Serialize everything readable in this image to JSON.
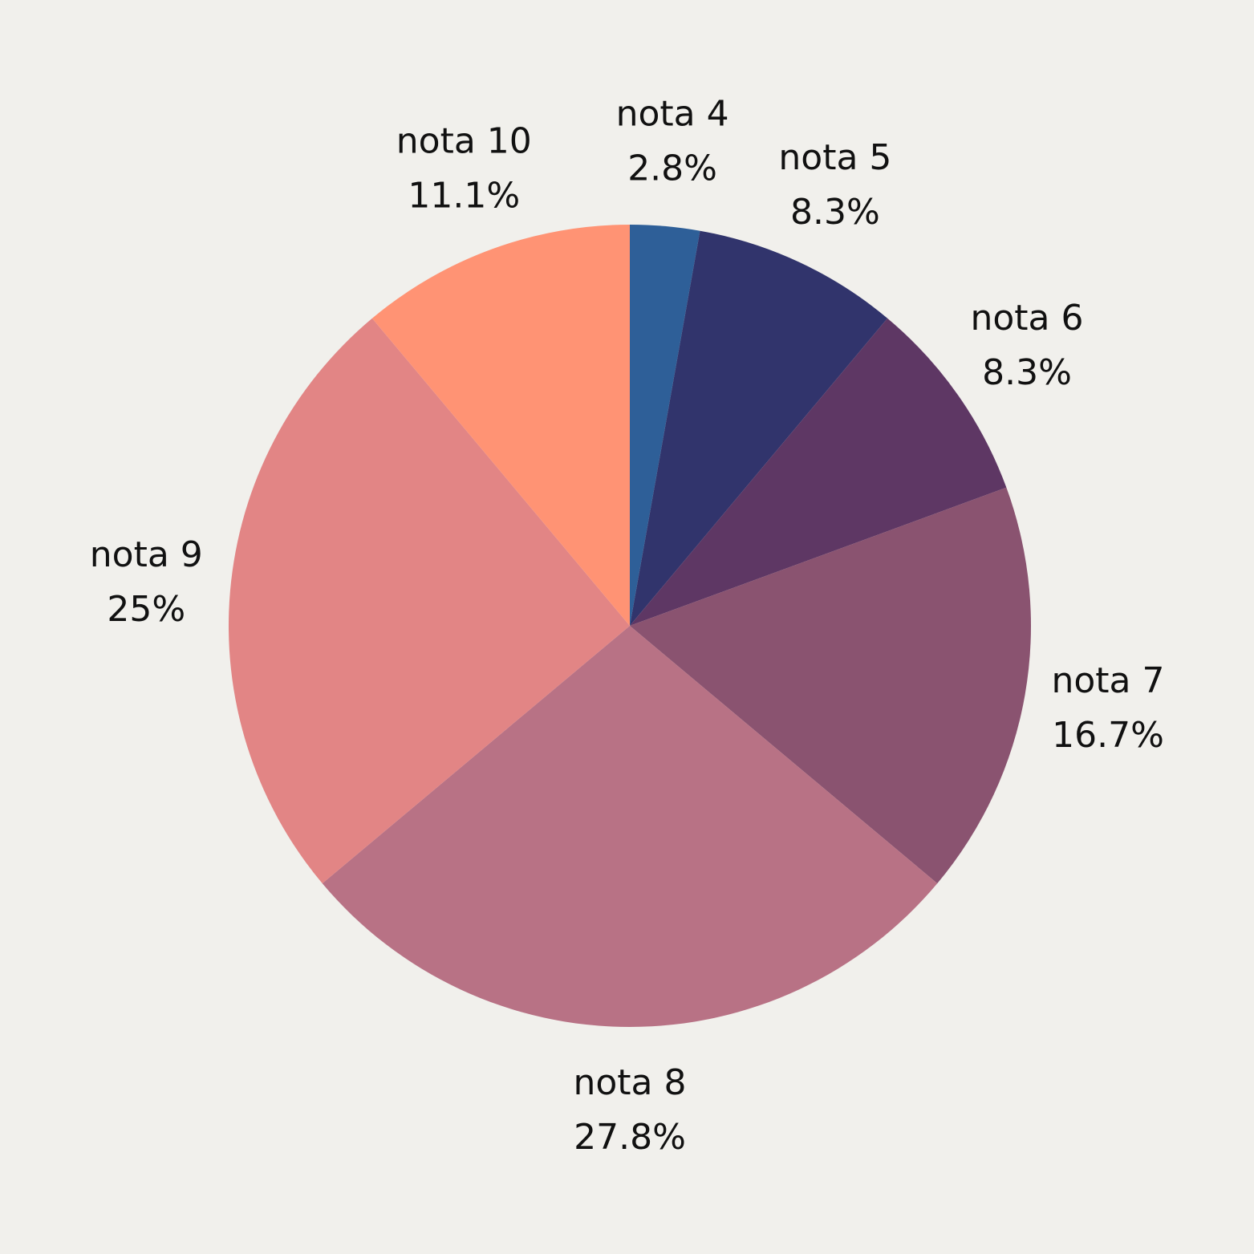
{
  "chart_data": {
    "type": "pie",
    "title": "",
    "start": "12 o'clock",
    "direction": "clockwise",
    "slices": [
      {
        "label": "nota 4",
        "percent_label": "2.8%",
        "value": 2.8,
        "color": "#2e5f98"
      },
      {
        "label": "nota 5",
        "percent_label": "8.3%",
        "value": 8.3,
        "color": "#31346c"
      },
      {
        "label": "nota 6",
        "percent_label": "8.3%",
        "value": 8.3,
        "color": "#5e3764"
      },
      {
        "label": "nota 7",
        "percent_label": "16.7%",
        "value": 16.7,
        "color": "#8a5370"
      },
      {
        "label": "nota 8",
        "percent_label": "27.8%",
        "value": 27.8,
        "color": "#b87285"
      },
      {
        "label": "nota 9",
        "percent_label": "25%",
        "value": 25,
        "color": "#e28585"
      },
      {
        "label": "nota 10",
        "percent_label": "11.1%",
        "value": 11.1,
        "color": "#ff9374"
      }
    ]
  }
}
